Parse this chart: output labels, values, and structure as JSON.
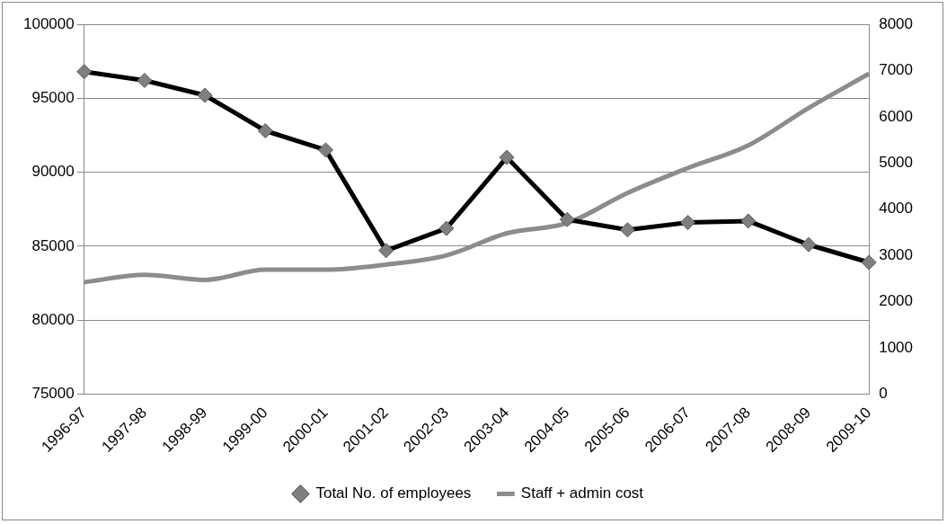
{
  "chart_data": {
    "type": "line",
    "categories": [
      "1996-97",
      "1997-98",
      "1998-99",
      "1999-00",
      "2000-01",
      "2001-02",
      "2002-03",
      "2003-04",
      "2004-05",
      "2005-06",
      "2006-07",
      "2007-08",
      "2008-09",
      "2009-10"
    ],
    "series": [
      {
        "name": "Total No. of employees",
        "color": "#000000",
        "marker": "diamond",
        "values": [
          96800,
          96200,
          95200,
          92800,
          91500,
          84700,
          86200,
          91000,
          86800,
          86100,
          86600,
          86700,
          85100,
          83900
        ]
      },
      {
        "name": "Staff + admin cost",
        "color": "#8c8c8c",
        "marker": "none",
        "axis": "y2",
        "values": [
          2420,
          2580,
          2470,
          2690,
          2690,
          2800,
          3000,
          3480,
          3700,
          4350,
          4890,
          5380,
          6190,
          6930
        ]
      }
    ],
    "ylim": [
      75000,
      100000
    ],
    "yticks": [
      75000,
      80000,
      85000,
      90000,
      95000,
      100000
    ],
    "y2lim": [
      0,
      8000
    ],
    "y2ticks": [
      0,
      1000,
      2000,
      3000,
      4000,
      5000,
      6000,
      7000,
      8000
    ],
    "grid": "y",
    "legend": "bottom"
  }
}
